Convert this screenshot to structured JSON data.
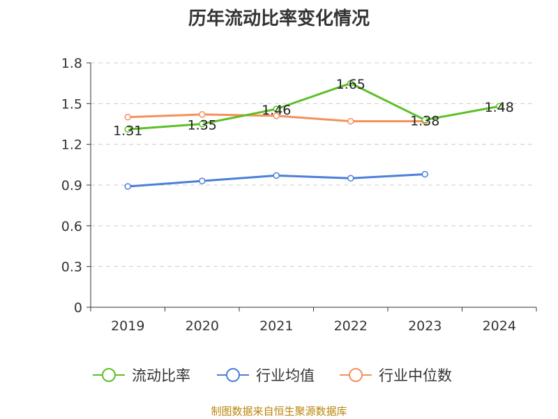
{
  "source_text": "制图数据来自恒生聚源数据库",
  "chart_data": {
    "type": "line",
    "title": "历年流动比率变化情况",
    "categories": [
      "2019",
      "2020",
      "2021",
      "2022",
      "2023",
      "2024"
    ],
    "ylim": [
      0,
      1.8
    ],
    "yticks": [
      "0",
      "0.3",
      "0.6",
      "0.9",
      "1.2",
      "1.5",
      "1.8"
    ],
    "grid": true,
    "legend_position": "bottom",
    "series": [
      {
        "name": "流动比率",
        "color": "#5cbf26",
        "values": [
          1.31,
          1.35,
          1.46,
          1.65,
          1.38,
          1.48
        ],
        "labels": [
          "1.31",
          "1.35",
          "1.46",
          "1.65",
          "1.38",
          "1.48"
        ]
      },
      {
        "name": "行业均值",
        "color": "#4a7fd9",
        "values": [
          0.89,
          0.93,
          0.97,
          0.95,
          0.98,
          null
        ]
      },
      {
        "name": "行业中位数",
        "color": "#f5905a",
        "values": [
          1.4,
          1.42,
          1.41,
          1.37,
          1.37,
          null
        ]
      }
    ]
  }
}
